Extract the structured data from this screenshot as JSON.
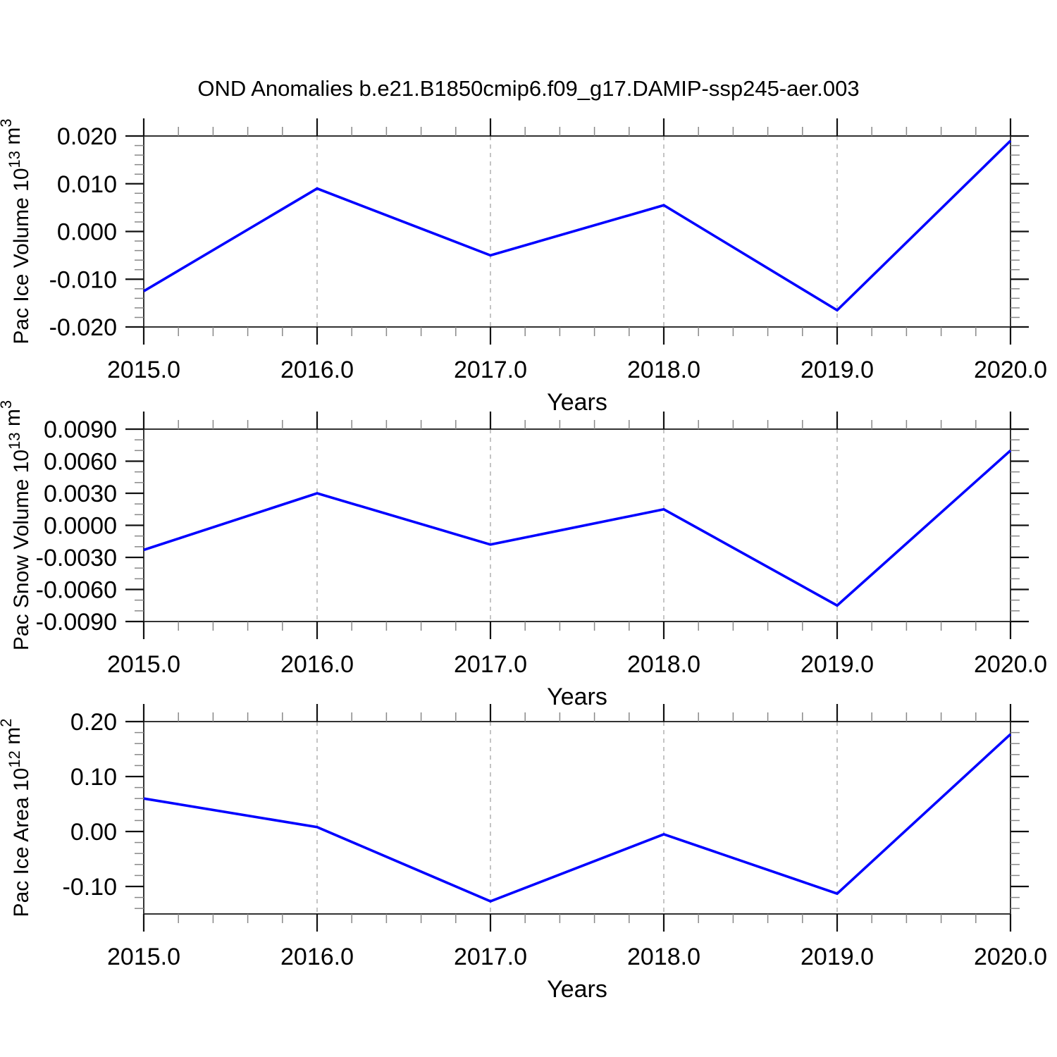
{
  "page": {
    "title": "OND Anomalies b.e21.B1850cmip6.f09_g17.DAMIP-ssp245-aer.003"
  },
  "colors": {
    "line": "#0000ff",
    "frame": "#333333",
    "major_tick": "#111111",
    "minor_tick": "#888888",
    "grid": "#aaaaaa",
    "text": "#000000",
    "background": "#ffffff"
  },
  "chart_data": [
    {
      "type": "line",
      "xlabel": "Years",
      "ylabel": "Pac Ice Volume 10^13 m^3",
      "ylabel_parts": [
        {
          "t": "Pac Ice Volume 10"
        },
        {
          "t": "13",
          "sup": true
        },
        {
          "t": " m"
        },
        {
          "t": "3",
          "sup": true
        }
      ],
      "x": [
        2015,
        2016,
        2017,
        2018,
        2019,
        2020
      ],
      "values": [
        -0.0125,
        0.009,
        -0.005,
        0.0055,
        -0.0165,
        0.019
      ],
      "xlim": [
        2015,
        2020
      ],
      "ylim": [
        -0.02,
        0.02
      ],
      "xticks_major": [
        2015,
        2016,
        2017,
        2018,
        2019,
        2020
      ],
      "xtick_labels": [
        "2015.0",
        "2016.0",
        "2017.0",
        "2018.0",
        "2019.0",
        "2020.0"
      ],
      "x_minor_step": 0.2,
      "yticks_major": [
        0.02,
        0.01,
        0,
        -0.01,
        -0.02
      ],
      "ytick_labels": [
        "0.020",
        "0.010",
        "0.000",
        "-0.010",
        "-0.020"
      ],
      "y_minor_step": 0.002,
      "gridlines_x": [
        2016,
        2017,
        2018,
        2019
      ],
      "grid_on": "dashed vertical only",
      "legend": "none"
    },
    {
      "type": "line",
      "xlabel": "Years",
      "ylabel": "Pac Snow Volume 10^13 m^3",
      "ylabel_parts": [
        {
          "t": "Pac Snow Volume 10"
        },
        {
          "t": "13",
          "sup": true
        },
        {
          "t": " m"
        },
        {
          "t": "3",
          "sup": true
        }
      ],
      "x": [
        2015,
        2016,
        2017,
        2018,
        2019,
        2020
      ],
      "values": [
        -0.0023,
        0.003,
        -0.0018,
        0.0015,
        -0.0075,
        0.007
      ],
      "xlim": [
        2015,
        2020
      ],
      "ylim": [
        -0.009,
        0.009
      ],
      "xticks_major": [
        2015,
        2016,
        2017,
        2018,
        2019,
        2020
      ],
      "xtick_labels": [
        "2015.0",
        "2016.0",
        "2017.0",
        "2018.0",
        "2019.0",
        "2020.0"
      ],
      "x_minor_step": 0.2,
      "yticks_major": [
        0.009,
        0.006,
        0.003,
        0,
        -0.003,
        -0.006,
        -0.009
      ],
      "ytick_labels": [
        "0.0090",
        "0.0060",
        "0.0030",
        "0.0000",
        "-0.0030",
        "-0.0060",
        "-0.0090"
      ],
      "y_minor_step": 0.001,
      "gridlines_x": [
        2016,
        2017,
        2018,
        2019
      ],
      "grid_on": "dashed vertical only",
      "legend": "none"
    },
    {
      "type": "line",
      "xlabel": "Years",
      "ylabel": "Pac Ice Area 10^12 m^2",
      "ylabel_parts": [
        {
          "t": "Pac Ice Area 10"
        },
        {
          "t": "12",
          "sup": true
        },
        {
          "t": " m"
        },
        {
          "t": "2",
          "sup": true
        }
      ],
      "x": [
        2015,
        2016,
        2017,
        2018,
        2019,
        2020
      ],
      "values": [
        0.06,
        0.008,
        -0.127,
        -0.005,
        -0.113,
        0.177
      ],
      "xlim": [
        2015,
        2020
      ],
      "ylim": [
        -0.15,
        0.2
      ],
      "xticks_major": [
        2015,
        2016,
        2017,
        2018,
        2019,
        2020
      ],
      "xtick_labels": [
        "2015.0",
        "2016.0",
        "2017.0",
        "2018.0",
        "2019.0",
        "2020.0"
      ],
      "x_minor_step": 0.2,
      "yticks_major": [
        0.2,
        0.1,
        0,
        -0.1
      ],
      "ytick_labels": [
        "0.20",
        "0.10",
        "0.00",
        "-0.10"
      ],
      "y_minor_step": 0.02,
      "gridlines_x": [
        2016,
        2017,
        2018,
        2019
      ],
      "grid_on": "dashed vertical only",
      "legend": "none"
    }
  ]
}
